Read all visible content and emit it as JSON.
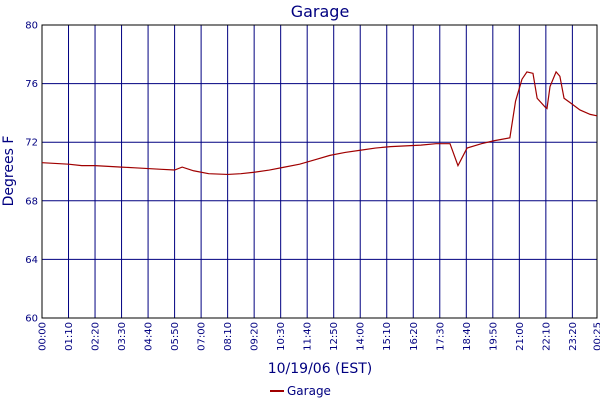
{
  "chart_data": {
    "type": "line",
    "title": "Garage",
    "x_label": "10/19/06 (EST)",
    "y_label": "Degrees F",
    "x": [
      0,
      35,
      70,
      105,
      140,
      175,
      210,
      245,
      280,
      315,
      350,
      370,
      400,
      440,
      490,
      525,
      560,
      600,
      640,
      680,
      720,
      760,
      800,
      840,
      880,
      920,
      960,
      1000,
      1040,
      1077,
      1098,
      1122,
      1160,
      1193,
      1235,
      1250,
      1267,
      1280,
      1296,
      1307,
      1328,
      1333,
      1341,
      1357,
      1367,
      1378,
      1394,
      1420,
      1447,
      1465
    ],
    "series": [
      {
        "name": "Garage",
        "color": "#a00000",
        "values": [
          70.6,
          70.55,
          70.5,
          70.4,
          70.4,
          70.35,
          70.3,
          70.25,
          70.2,
          70.15,
          70.1,
          70.3,
          70.05,
          69.85,
          69.8,
          69.85,
          69.95,
          70.1,
          70.3,
          70.5,
          70.8,
          71.1,
          71.3,
          71.45,
          71.6,
          71.7,
          71.75,
          71.8,
          71.9,
          71.9,
          70.4,
          71.6,
          71.9,
          72.1,
          72.3,
          74.8,
          76.3,
          76.8,
          76.7,
          75.0,
          74.4,
          74.3,
          75.8,
          76.8,
          76.5,
          75.0,
          74.7,
          74.2,
          73.9,
          73.8
        ]
      }
    ],
    "xlim": [
      0,
      1465
    ],
    "xticks": [
      {
        "value": 0,
        "label": "00:00"
      },
      {
        "value": 70,
        "label": "01:10"
      },
      {
        "value": 140,
        "label": "02:20"
      },
      {
        "value": 210,
        "label": "03:30"
      },
      {
        "value": 280,
        "label": "04:40"
      },
      {
        "value": 350,
        "label": "05:50"
      },
      {
        "value": 420,
        "label": "07:00"
      },
      {
        "value": 490,
        "label": "08:10"
      },
      {
        "value": 560,
        "label": "09:20"
      },
      {
        "value": 630,
        "label": "10:30"
      },
      {
        "value": 700,
        "label": "11:40"
      },
      {
        "value": 770,
        "label": "12:50"
      },
      {
        "value": 840,
        "label": "14:00"
      },
      {
        "value": 910,
        "label": "15:10"
      },
      {
        "value": 980,
        "label": "16:20"
      },
      {
        "value": 1050,
        "label": "17:30"
      },
      {
        "value": 1120,
        "label": "18:40"
      },
      {
        "value": 1190,
        "label": "19:50"
      },
      {
        "value": 1260,
        "label": "21:00"
      },
      {
        "value": 1330,
        "label": "22:10"
      },
      {
        "value": 1400,
        "label": "23:20"
      },
      {
        "value": 1465,
        "label": "00:25"
      }
    ],
    "ylim": [
      60,
      80
    ],
    "yticks": [
      60,
      64,
      68,
      72,
      76,
      80
    ],
    "grid": true,
    "legend": "bottom"
  }
}
